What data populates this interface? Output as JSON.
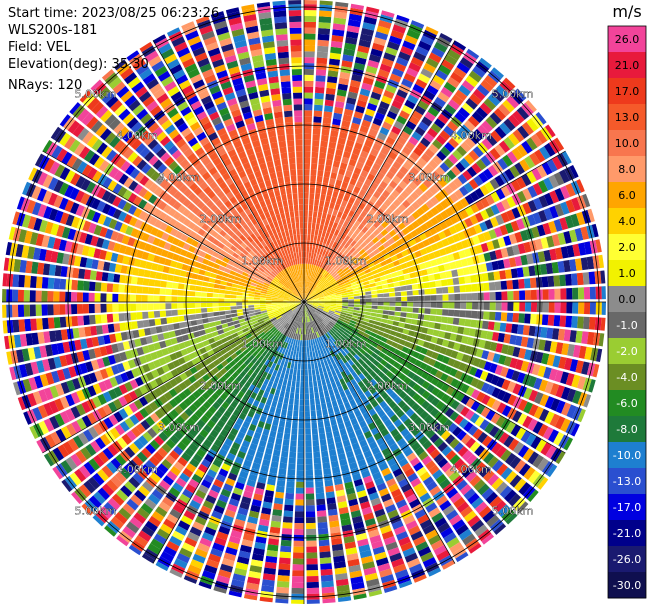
{
  "header": {
    "start_time": "Start time: 2023/08/25 06:23:26",
    "instrument": "WLS200s-181",
    "field": "Field: VEL",
    "elevation": "Elevation(deg): 35.30",
    "nrays": "NRays: 120"
  },
  "colorbar": {
    "unit": "m/s",
    "ticks": [
      "26.0",
      "21.0",
      "17.0",
      "13.0",
      "10.0",
      "8.0",
      "6.0",
      "4.0",
      "2.0",
      "1.0",
      "0.0",
      "-1.0",
      "-2.0",
      "-4.0",
      "-6.0",
      "-8.0",
      "-10.0",
      "-13.0",
      "-17.0",
      "-21.0",
      "-26.0",
      "-30.0"
    ],
    "colors": [
      "#f2449a",
      "#e81a3c",
      "#ee3a1c",
      "#f55a2a",
      "#f8764e",
      "#ff9a6a",
      "#ffa500",
      "#ffd200",
      "#ffff33",
      "#f2f200",
      "#8c8c8c",
      "#686868",
      "#9acd32",
      "#6b8e23",
      "#228b22",
      "#1e7a3a",
      "#1e7fd0",
      "#2a4fd0",
      "#0000e0",
      "#00008b",
      "#1a1a70",
      "#0f0f4f"
    ]
  },
  "chart_data": {
    "type": "ppi",
    "field": "VEL",
    "units": "m/s",
    "nrays": 120,
    "range_ring_labels": [
      "1.00km",
      "2.00km",
      "3.00km",
      "4.00km",
      "5.00km"
    ],
    "range_rings_km": [
      1,
      2,
      3,
      4,
      5
    ],
    "colorbar_range": [
      -30.0,
      26.0
    ],
    "velocity_pattern": {
      "north": "positive 8 to 13 m/s (warm colors)",
      "center_east_west": "near 0 m/s (gray/yellow)",
      "south": "negative -8 to -10 m/s (blue)",
      "outer_ranges": "noisy, all colors"
    }
  }
}
